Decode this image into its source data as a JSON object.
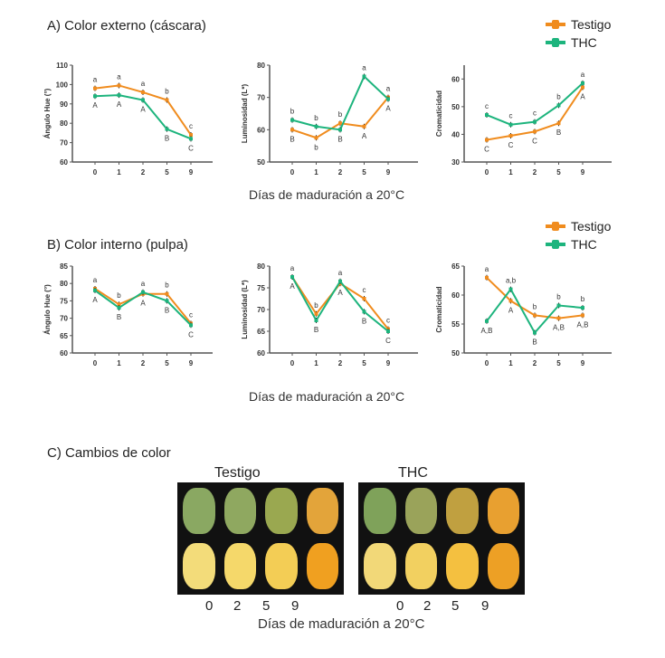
{
  "sections": {
    "a": "A) Color externo (cáscara)",
    "b": "B) Color interno (pulpa)",
    "c": "C) Cambios de color"
  },
  "xlabel": "Días de maduración a 20°C",
  "legend": [
    {
      "name": "Testigo",
      "color": "#f08c1e"
    },
    {
      "name": "THC",
      "color": "#1db47d"
    }
  ],
  "photos": {
    "left_title": "Testigo",
    "right_title": "THC",
    "days": [
      "0",
      "2",
      "5",
      "9"
    ],
    "xlabel": "Días de maduración a 20°C"
  },
  "chart_data": [
    {
      "type": "line",
      "ylabel": "Ángulo Hue (°)",
      "categories": [
        "0",
        "1",
        "2",
        "5",
        "9"
      ],
      "ylim": [
        60,
        110
      ],
      "yticks": [
        60,
        70,
        80,
        90,
        100,
        110
      ],
      "series": [
        {
          "name": "Testigo",
          "values": [
            98,
            99.5,
            96,
            92,
            74
          ]
        },
        {
          "name": "THC",
          "values": [
            94,
            94.5,
            92,
            77,
            72
          ]
        }
      ],
      "upper_labels": [
        "a",
        "a",
        "a",
        "b",
        "c"
      ],
      "lower_labels": [
        "A",
        "A",
        "A",
        "B",
        "C"
      ]
    },
    {
      "type": "line",
      "ylabel": "Luminosidad (L*)",
      "categories": [
        "0",
        "1",
        "2",
        "5",
        "9"
      ],
      "ylim": [
        50,
        80
      ],
      "yticks": [
        50,
        60,
        70,
        80
      ],
      "series": [
        {
          "name": "Testigo",
          "values": [
            60,
            57.5,
            62,
            61,
            70
          ]
        },
        {
          "name": "THC",
          "values": [
            63,
            61,
            60,
            76.5,
            69.5
          ]
        }
      ],
      "upper_labels": [
        "b",
        "b",
        "b",
        "a",
        "a"
      ],
      "lower_labels": [
        "B",
        "b",
        "B",
        "A",
        "A"
      ]
    },
    {
      "type": "line",
      "ylabel": "Cromaticidad",
      "categories": [
        "0",
        "1",
        "2",
        "5",
        "9"
      ],
      "ylim": [
        30,
        65
      ],
      "yticks": [
        30,
        40,
        50,
        60
      ],
      "series": [
        {
          "name": "Testigo",
          "values": [
            38,
            39.5,
            41,
            44,
            57
          ]
        },
        {
          "name": "THC",
          "values": [
            47,
            43.5,
            44.5,
            50.5,
            58.5
          ]
        }
      ],
      "upper_labels": [
        "c",
        "c",
        "c",
        "b",
        "a"
      ],
      "lower_labels": [
        "C",
        "C",
        "C",
        "B",
        "A"
      ]
    },
    {
      "type": "line",
      "ylabel": "Ángulo Hue (°)",
      "categories": [
        "0",
        "1",
        "2",
        "5",
        "9"
      ],
      "ylim": [
        60,
        85
      ],
      "yticks": [
        60,
        65,
        70,
        75,
        80,
        85
      ],
      "series": [
        {
          "name": "Testigo",
          "values": [
            78.5,
            74,
            77,
            77,
            68.5
          ]
        },
        {
          "name": "THC",
          "values": [
            78,
            73,
            77.5,
            75,
            68
          ]
        }
      ],
      "upper_labels": [
        "a",
        "b",
        "a",
        "b",
        "c"
      ],
      "lower_labels": [
        "A",
        "B",
        "A",
        "B",
        "C"
      ]
    },
    {
      "type": "line",
      "ylabel": "Luminosidad (L*)",
      "categories": [
        "0",
        "1",
        "2",
        "5",
        "9"
      ],
      "ylim": [
        60,
        80
      ],
      "yticks": [
        60,
        65,
        70,
        75,
        80
      ],
      "series": [
        {
          "name": "Testigo",
          "values": [
            77.5,
            69,
            76,
            72.5,
            65.5
          ]
        },
        {
          "name": "THC",
          "values": [
            77.5,
            67.5,
            76.5,
            69.5,
            65
          ]
        }
      ],
      "upper_labels": [
        "a",
        "b",
        "a",
        "c",
        "c"
      ],
      "lower_labels": [
        "A",
        "B",
        "A",
        "B",
        "C"
      ]
    },
    {
      "type": "line",
      "ylabel": "Cromaticidad",
      "categories": [
        "0",
        "1",
        "2",
        "5",
        "9"
      ],
      "ylim": [
        50,
        65
      ],
      "yticks": [
        50,
        55,
        60,
        65
      ],
      "series": [
        {
          "name": "Testigo",
          "values": [
            63,
            59,
            56.5,
            56,
            56.5
          ]
        },
        {
          "name": "THC",
          "values": [
            55.5,
            61,
            53.5,
            58.2,
            57.8
          ]
        }
      ],
      "upper_labels": [
        "a",
        "a,b",
        "b",
        "b",
        "b"
      ],
      "lower_labels": [
        "A,B",
        "A",
        "B",
        "A,B",
        "A,B"
      ]
    }
  ]
}
